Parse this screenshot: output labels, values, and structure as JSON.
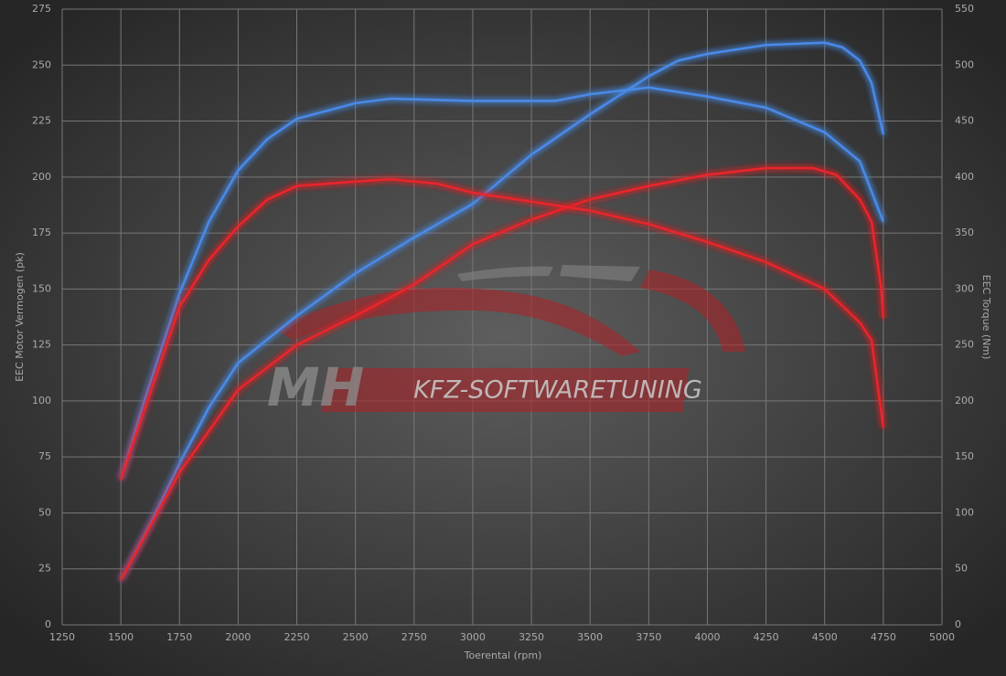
{
  "chart_data": {
    "type": "line",
    "xlabel": "Toerental (rpm)",
    "ylabel": "EEC Motor Vermogen (pk)",
    "y2label": "EEC Torque (Nm)",
    "watermark": [
      "MH",
      "KFZ-SOFTWARETUNING"
    ],
    "xlim": [
      1250,
      5000
    ],
    "xticks": [
      1250,
      1500,
      1750,
      2000,
      2250,
      2500,
      2750,
      3000,
      3250,
      3500,
      3750,
      4000,
      4250,
      4500,
      4750,
      5000
    ],
    "ylim": [
      0,
      275
    ],
    "yticks": [
      0,
      25,
      50,
      75,
      100,
      125,
      150,
      175,
      200,
      225,
      250,
      275
    ],
    "y2lim": [
      0,
      550
    ],
    "y2ticks": [
      0,
      50,
      100,
      150,
      200,
      250,
      300,
      350,
      400,
      450,
      500,
      550
    ],
    "grid": true,
    "series": [
      {
        "color": "#4a8ae8",
        "axis": "y",
        "x": [
          1500,
          1625,
          1750,
          1875,
          2000,
          2250,
          2500,
          2750,
          3000,
          3250,
          3500,
          3750,
          3875,
          4000,
          4250,
          4500,
          4575,
          4650,
          4700,
          4750
        ],
        "values": [
          20,
          45,
          72,
          97,
          117,
          138,
          157,
          173,
          188,
          210,
          228,
          245,
          252,
          255,
          259,
          260,
          258,
          252,
          242,
          219
        ]
      },
      {
        "color": "#e8262a",
        "axis": "y",
        "x": [
          1500,
          1750,
          2000,
          2250,
          2500,
          2750,
          3000,
          3250,
          3500,
          3750,
          4000,
          4250,
          4450,
          4550,
          4650,
          4700,
          4740,
          4750
        ],
        "values": [
          20,
          68,
          105,
          125,
          138,
          152,
          170,
          181,
          190,
          196,
          201,
          204,
          204,
          201,
          190,
          180,
          151,
          137
        ]
      },
      {
        "color": "#4a8ae8",
        "axis": "y2",
        "x": [
          1500,
          1600,
          1750,
          1875,
          2000,
          2125,
          2250,
          2500,
          2650,
          3000,
          3350,
          3500,
          3750,
          4000,
          4250,
          4500,
          4650,
          4750
        ],
        "values": [
          130,
          200,
          296,
          360,
          406,
          434,
          452,
          466,
          470,
          468,
          468,
          474,
          480,
          472,
          462,
          440,
          414,
          360
        ]
      },
      {
        "color": "#e8262a",
        "axis": "y2",
        "x": [
          1500,
          1750,
          1875,
          2000,
          2125,
          2250,
          2500,
          2650,
          2850,
          3000,
          3250,
          3500,
          3750,
          4000,
          4250,
          4500,
          4650,
          4700,
          4750
        ],
        "values": [
          130,
          284,
          326,
          356,
          380,
          392,
          396,
          398,
          394,
          386,
          378,
          370,
          358,
          342,
          324,
          300,
          270,
          254,
          176
        ]
      }
    ]
  }
}
